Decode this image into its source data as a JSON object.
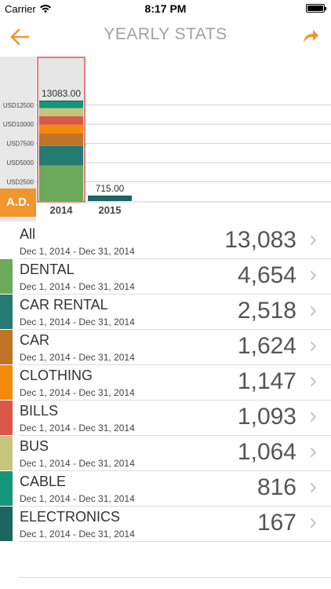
{
  "status_bar": {
    "carrier": "Carrier",
    "time": "8:17 PM",
    "wifi_icon": "wifi-icon",
    "battery_icon": "battery-icon"
  },
  "nav": {
    "title": "YEARLY STATS",
    "back_icon": "arrow-left-icon",
    "share_icon": "share-arrow-icon",
    "accent": "#f0962e"
  },
  "ad_badge": "A.D.",
  "chart_data": {
    "type": "bar",
    "stacked": true,
    "categories": [
      "2014",
      "2015"
    ],
    "totals_labels": [
      "13083.00",
      "715.00"
    ],
    "y_tick_labels": [
      "USD2500",
      "USD5000",
      "USD7500",
      "USD10000",
      "USD12500"
    ],
    "y_ticks": [
      2500,
      5000,
      7500,
      10000,
      12500
    ],
    "ylim": [
      0,
      14000
    ],
    "selected_category": "2014",
    "series": [
      {
        "name": "DENTAL",
        "color": "#6aaa5a",
        "values": [
          4654,
          0
        ]
      },
      {
        "name": "CAR RENTAL",
        "color": "#257a72",
        "values": [
          2518,
          0
        ]
      },
      {
        "name": "CAR",
        "color": "#bf7428",
        "values": [
          1624,
          0
        ]
      },
      {
        "name": "CLOTHING",
        "color": "#f48a0c",
        "values": [
          1147,
          0
        ]
      },
      {
        "name": "BILLS",
        "color": "#d95848",
        "values": [
          1093,
          0
        ]
      },
      {
        "name": "BUS",
        "color": "#c4c67c",
        "values": [
          1064,
          0
        ]
      },
      {
        "name": "CABLE",
        "color": "#15967c",
        "values": [
          816,
          0
        ]
      },
      {
        "name": "ELECTRONICS",
        "color": "#1e6460",
        "values": [
          167,
          715
        ]
      }
    ]
  },
  "list": [
    {
      "name": "All",
      "date": "Dec 1, 2014 - Dec 31, 2014",
      "amount": "13,083",
      "color": ""
    },
    {
      "name": "DENTAL",
      "date": "Dec 1, 2014 - Dec 31, 2014",
      "amount": "4,654",
      "color": "#6aaa5a"
    },
    {
      "name": "CAR RENTAL",
      "date": "Dec 1, 2014 - Dec 31, 2014",
      "amount": "2,518",
      "color": "#257a72"
    },
    {
      "name": "CAR",
      "date": "Dec 1, 2014 - Dec 31, 2014",
      "amount": "1,624",
      "color": "#bf7428"
    },
    {
      "name": "CLOTHING",
      "date": "Dec 1, 2014 - Dec 31, 2014",
      "amount": "1,147",
      "color": "#f48a0c"
    },
    {
      "name": "BILLS",
      "date": "Dec 1, 2014 - Dec 31, 2014",
      "amount": "1,093",
      "color": "#d95848"
    },
    {
      "name": "BUS",
      "date": "Dec 1, 2014 - Dec 31, 2014",
      "amount": "1,064",
      "color": "#c4c67c"
    },
    {
      "name": "CABLE",
      "date": "Dec 1, 2014 - Dec 31, 2014",
      "amount": "816",
      "color": "#15967c"
    },
    {
      "name": "ELECTRONICS",
      "date": "Dec 1, 2014 - Dec 31, 2014",
      "amount": "167",
      "color": "#1e6460"
    }
  ],
  "chevron_icon": "chevron-right-icon"
}
